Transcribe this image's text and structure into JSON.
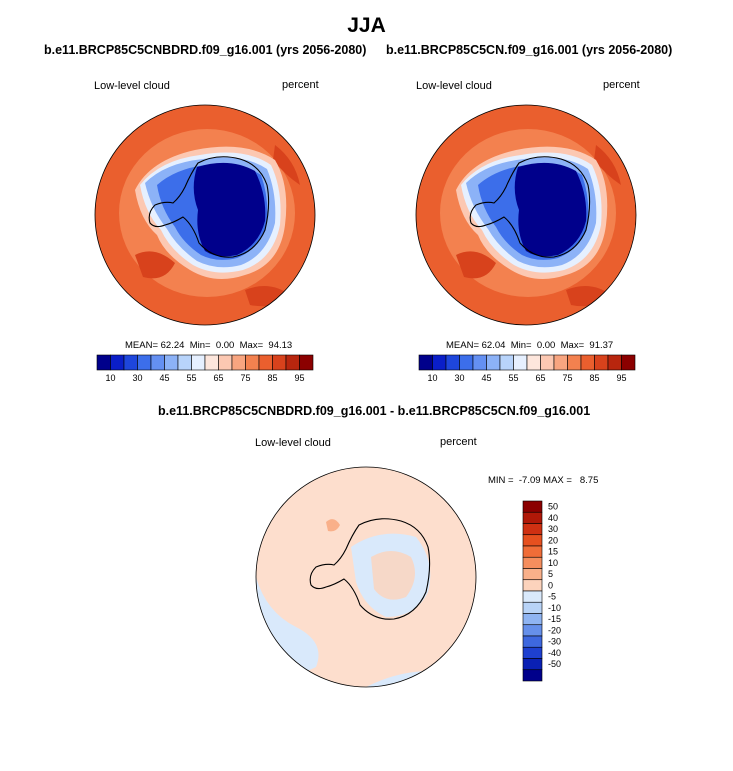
{
  "figure": {
    "title": "JJA"
  },
  "panels": [
    {
      "case_title": "b.e11.BRCP85C5CNBDRD.f09_g16.001 (yrs 2056-2080)",
      "variable": "Low-level cloud",
      "units": "percent",
      "stats": {
        "mean_label": "MEAN=",
        "mean": "62.24",
        "min_label": "Min=",
        "min": "0.00",
        "max_label": "Max=",
        "max": "94.13"
      }
    },
    {
      "case_title": "b.e11.BRCP85C5CN.f09_g16.001 (yrs 2056-2080)",
      "variable": "Low-level cloud",
      "units": "percent",
      "stats": {
        "mean_label": "MEAN=",
        "mean": "62.04",
        "min_label": "Min=",
        "min": "0.00",
        "max_label": "Max=",
        "max": "91.37"
      }
    },
    {
      "case_title": "b.e11.BRCP85C5CNBDRD.f09_g16.001 - b.e11.BRCP85C5CN.f09_g16.001",
      "variable": "Low-level cloud",
      "units": "percent",
      "stats_text": "MIN =  -7.09 MAX =   8.75"
    }
  ],
  "chart_data": [
    {
      "type": "heatmap",
      "title": "b.e11.BRCP85C5CNBDRD.f09_g16.001 (yrs 2056-2080)",
      "projection": "south polar stereographic",
      "variable": "Low-level cloud",
      "units": "percent",
      "mean": 62.24,
      "min": 0.0,
      "max": 94.13,
      "colorbar_levels": [
        10,
        20,
        30,
        40,
        45,
        50,
        55,
        60,
        65,
        70,
        75,
        80,
        85,
        90,
        95
      ],
      "colorbar_tick_labels": [
        "10",
        "30",
        "45",
        "55",
        "65",
        "75",
        "85",
        "95"
      ],
      "colors": [
        "#00008b",
        "#0a1ec8",
        "#1e46dc",
        "#3c6eea",
        "#6490f2",
        "#8cb2f7",
        "#b8d4fb",
        "#e6f0ff",
        "#fde6dc",
        "#fcc8b2",
        "#f8a580",
        "#f3814f",
        "#ea5f2e",
        "#d8421c",
        "#b8260e",
        "#8b0000"
      ]
    },
    {
      "type": "heatmap",
      "title": "b.e11.BRCP85C5CN.f09_g16.001 (yrs 2056-2080)",
      "projection": "south polar stereographic",
      "variable": "Low-level cloud",
      "units": "percent",
      "mean": 62.04,
      "min": 0.0,
      "max": 91.37,
      "colorbar_levels": [
        10,
        20,
        30,
        40,
        45,
        50,
        55,
        60,
        65,
        70,
        75,
        80,
        85,
        90,
        95
      ],
      "colorbar_tick_labels": [
        "10",
        "30",
        "45",
        "55",
        "65",
        "75",
        "85",
        "95"
      ],
      "colors": [
        "#00008b",
        "#0a1ec8",
        "#1e46dc",
        "#3c6eea",
        "#6490f2",
        "#8cb2f7",
        "#b8d4fb",
        "#e6f0ff",
        "#fde6dc",
        "#fcc8b2",
        "#f8a580",
        "#f3814f",
        "#ea5f2e",
        "#d8421c",
        "#b8260e",
        "#8b0000"
      ]
    },
    {
      "type": "heatmap",
      "title": "b.e11.BRCP85C5CNBDRD.f09_g16.001 - b.e11.BRCP85C5CN.f09_g16.001",
      "projection": "south polar stereographic",
      "variable": "Low-level cloud",
      "units": "percent",
      "min": -7.09,
      "max": 8.75,
      "colorbar_levels": [
        -50,
        -40,
        -30,
        -20,
        -15,
        -10,
        -5,
        0,
        5,
        10,
        15,
        20,
        30,
        40,
        50
      ],
      "colorbar_tick_labels": [
        "50",
        "40",
        "30",
        "20",
        "15",
        "10",
        "5",
        "0",
        "-5",
        "-10",
        "-15",
        "-20",
        "-30",
        "-40",
        "-50"
      ],
      "colors": [
        "#8b0000",
        "#b01808",
        "#cf3012",
        "#e6501f",
        "#f06d38",
        "#f58e5e",
        "#f9b08a",
        "#fcd3bc",
        "#d9e9fb",
        "#b8d3f7",
        "#8fb4f2",
        "#6690ea",
        "#3e68df",
        "#1e40d0",
        "#0a20b4",
        "#00008b"
      ]
    }
  ]
}
